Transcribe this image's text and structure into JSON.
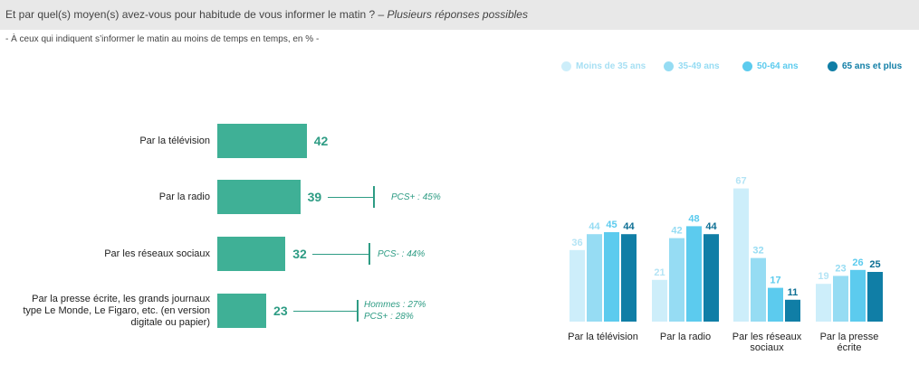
{
  "header": {
    "question": "Et par quel(s) moyen(s) avez-vous pour habitude de vous informer le matin ? –",
    "question_note": "Plusieurs réponses possibles"
  },
  "subtitle": "- À ceux qui indiquent s’informer le matin au moins de temps en temps, en % -",
  "chart_data": [
    {
      "type": "bar",
      "orientation": "horizontal",
      "categories": [
        "Par la télévision",
        "Par la radio",
        "Par les réseaux sociaux",
        "Par la presse écrite, les grands journaux type Le Monde, Le Figaro, etc. (en version digitale ou papier)"
      ],
      "values": [
        42,
        39,
        32,
        23
      ],
      "annotations": [
        [],
        [
          "PCS+ : 45%"
        ],
        [
          "PCS- : 44%"
        ],
        [
          "Hommes : 27%",
          "PCS+ : 28%"
        ]
      ],
      "color": "#3fb096"
    },
    {
      "type": "bar",
      "orientation": "vertical",
      "categories": [
        "Par la télévision",
        "Par la radio",
        "Par les réseaux sociaux",
        "Par la presse écrite"
      ],
      "series": [
        {
          "name": "Moins de 35 ans",
          "values": [
            36,
            21,
            67,
            19
          ],
          "color": "#cdeefa"
        },
        {
          "name": "35-49 ans",
          "values": [
            44,
            42,
            32,
            23
          ],
          "color": "#96dcf3"
        },
        {
          "name": "50-64 ans",
          "values": [
            45,
            48,
            17,
            26
          ],
          "color": "#5ccbee"
        },
        {
          "name": "65 ans et plus",
          "values": [
            44,
            44,
            11,
            25
          ],
          "color": "#107ea6"
        }
      ],
      "legend_position": "top-right"
    }
  ]
}
